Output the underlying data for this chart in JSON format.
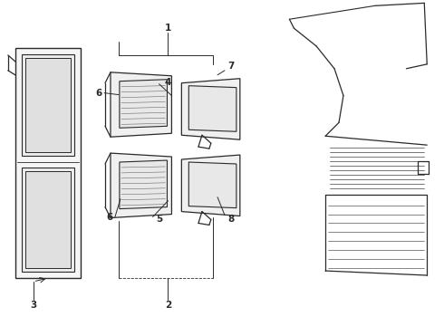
{
  "bg_color": "#ffffff",
  "line_color": "#2a2a2a",
  "fig_width": 4.9,
  "fig_height": 3.6,
  "dpi": 100,
  "label_fontsize": 7.5
}
